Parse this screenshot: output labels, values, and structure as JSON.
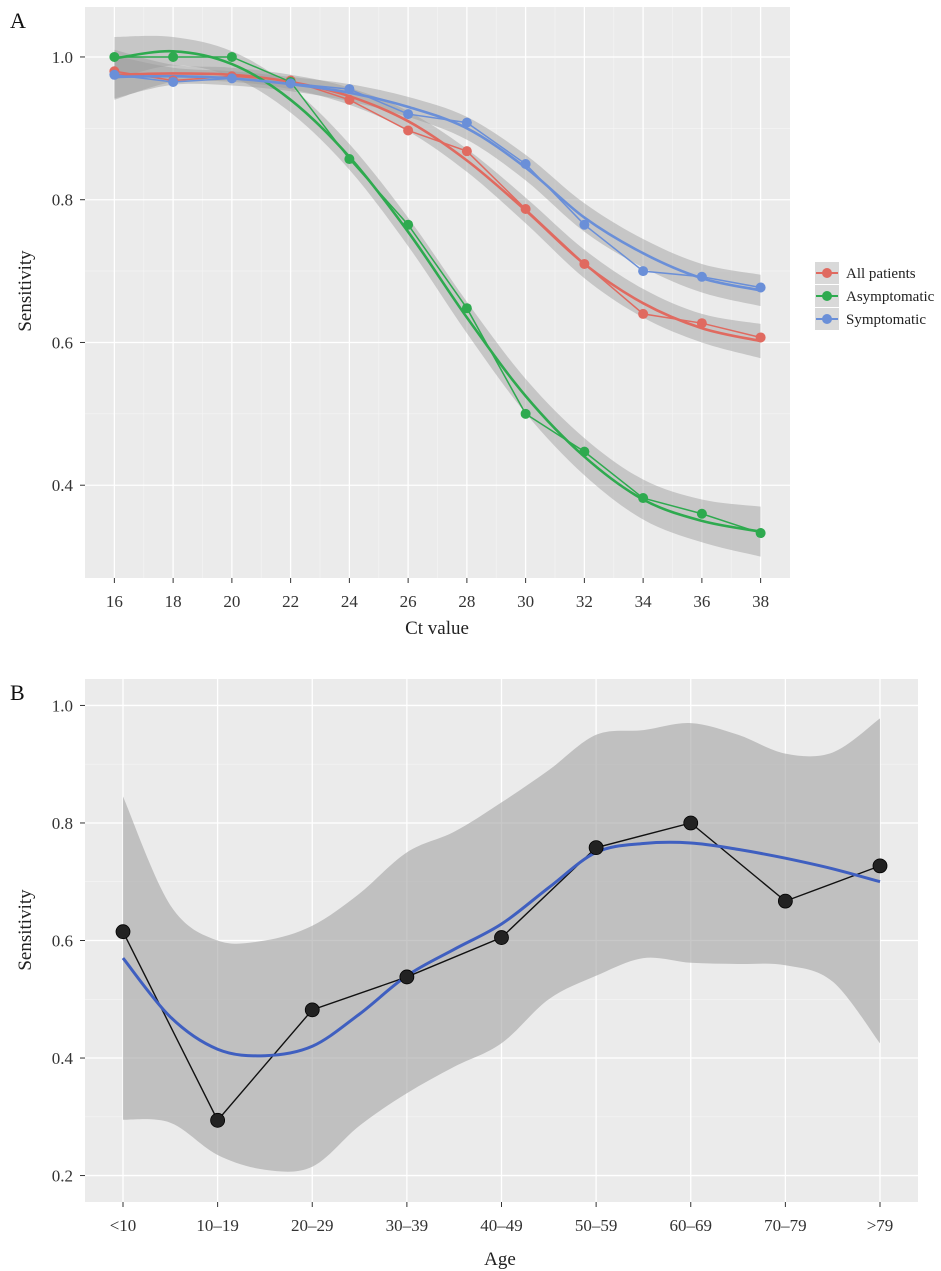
{
  "chart_data": [
    {
      "panel": "A",
      "type": "line",
      "xlabel": "Ct value",
      "ylabel": "Sensitivity",
      "xlim": [
        15,
        39
      ],
      "ylim": [
        0.27,
        1.07
      ],
      "x_ticks": [
        16,
        18,
        20,
        22,
        24,
        26,
        28,
        30,
        32,
        34,
        36,
        38
      ],
      "y_ticks": [
        0.4,
        0.6,
        0.8,
        1.0
      ],
      "y_tick_labels": [
        "0.4",
        "0.6",
        "0.8",
        "1.0"
      ],
      "grid": true,
      "legend_position": "right",
      "smoothed_with_confidence_band": true,
      "series": [
        {
          "name": "All patients",
          "color": "#e06a60",
          "x": [
            16,
            18,
            20,
            22,
            24,
            26,
            28,
            30,
            32,
            34,
            36,
            38
          ],
          "values": [
            0.98,
            0.967,
            0.973,
            0.967,
            0.94,
            0.897,
            0.868,
            0.787,
            0.71,
            0.64,
            0.627,
            0.607
          ],
          "smooth": [
            0.975,
            0.977,
            0.975,
            0.965,
            0.945,
            0.91,
            0.855,
            0.785,
            0.71,
            0.655,
            0.62,
            0.602
          ],
          "band": [
            0.035,
            0.012,
            0.01,
            0.01,
            0.012,
            0.014,
            0.016,
            0.018,
            0.02,
            0.02,
            0.02,
            0.024
          ]
        },
        {
          "name": "Asymptomatic",
          "color": "#2eaa4f",
          "x": [
            16,
            18,
            20,
            22,
            24,
            26,
            28,
            30,
            32,
            34,
            36,
            38
          ],
          "values": [
            1.0,
            1.0,
            1.0,
            0.965,
            0.857,
            0.765,
            0.648,
            0.5,
            0.447,
            0.382,
            0.36,
            0.333
          ],
          "smooth": [
            0.998,
            1.008,
            0.99,
            0.94,
            0.86,
            0.755,
            0.635,
            0.525,
            0.44,
            0.38,
            0.35,
            0.335
          ],
          "band": [
            0.03,
            0.02,
            0.018,
            0.018,
            0.018,
            0.02,
            0.022,
            0.024,
            0.026,
            0.028,
            0.03,
            0.035
          ]
        },
        {
          "name": "Symptomatic",
          "color": "#6a8fd8",
          "x": [
            16,
            18,
            20,
            22,
            24,
            26,
            28,
            30,
            32,
            34,
            36,
            38
          ],
          "values": [
            0.975,
            0.965,
            0.97,
            0.963,
            0.955,
            0.92,
            0.908,
            0.85,
            0.765,
            0.7,
            0.692,
            0.677
          ],
          "smooth": [
            0.972,
            0.973,
            0.97,
            0.962,
            0.95,
            0.93,
            0.9,
            0.845,
            0.775,
            0.725,
            0.69,
            0.673
          ],
          "band": [
            0.03,
            0.012,
            0.01,
            0.01,
            0.012,
            0.014,
            0.016,
            0.018,
            0.02,
            0.02,
            0.02,
            0.022
          ]
        }
      ]
    },
    {
      "panel": "B",
      "type": "line",
      "xlabel": "Age",
      "ylabel": "Sensitivity",
      "ylim": [
        0.155,
        1.045
      ],
      "y_ticks": [
        0.2,
        0.4,
        0.6,
        0.8,
        1.0
      ],
      "y_tick_labels": [
        "0.2",
        "0.4",
        "0.6",
        "0.8",
        "1.0"
      ],
      "grid": true,
      "smoothed_with_confidence_band": true,
      "categories": [
        "<10",
        "10–19",
        "20–29",
        "30–39",
        "40–49",
        "50–59",
        "60–69",
        "70–79",
        ">79"
      ],
      "series": [
        {
          "color": "#111111",
          "smooth_color": "#3f5fc0",
          "values": [
            0.615,
            0.294,
            0.482,
            0.538,
            0.605,
            0.758,
            0.8,
            0.667,
            0.727
          ],
          "smooth_x": [
            0,
            0.5,
            1,
            1.5,
            2,
            2.5,
            3,
            3.5,
            4,
            4.5,
            5,
            5.5,
            6,
            6.5,
            7,
            7.5,
            8
          ],
          "smooth": [
            0.57,
            0.47,
            0.415,
            0.404,
            0.42,
            0.475,
            0.54,
            0.585,
            0.628,
            0.69,
            0.75,
            0.765,
            0.766,
            0.755,
            0.74,
            0.722,
            0.7
          ],
          "band_lower": [
            0.295,
            0.29,
            0.235,
            0.21,
            0.215,
            0.285,
            0.34,
            0.385,
            0.425,
            0.5,
            0.54,
            0.57,
            0.562,
            0.56,
            0.558,
            0.53,
            0.425
          ],
          "band_upper": [
            0.845,
            0.66,
            0.6,
            0.6,
            0.625,
            0.68,
            0.75,
            0.785,
            0.835,
            0.89,
            0.95,
            0.958,
            0.97,
            0.95,
            0.918,
            0.92,
            0.978
          ]
        }
      ]
    }
  ]
}
